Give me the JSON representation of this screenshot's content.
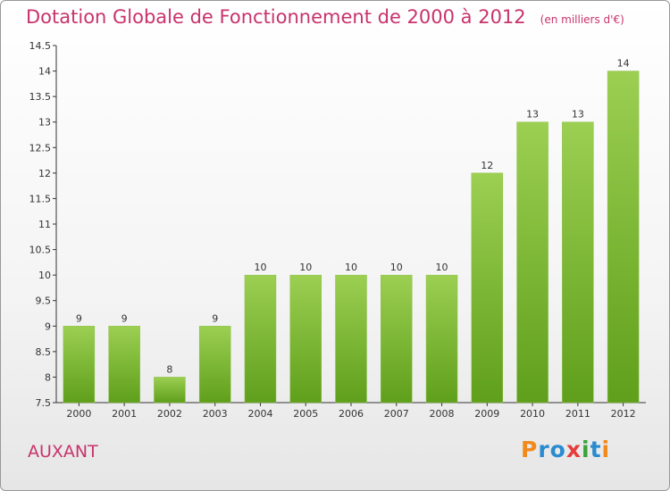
{
  "title": "Dotation Globale de Fonctionnement de 2000 à 2012",
  "unit": "(en milliers d'€)",
  "commune": "AUXANT",
  "logo": "Proxiti",
  "colors": {
    "title": "#c8336b",
    "bar_top": "#9ccf52",
    "bar_bottom": "#5f9f1b",
    "logo": [
      "#f08a1c",
      "#2a8bd0",
      "#2a8bd0",
      "#e63c3c",
      "#3aa33a",
      "#2a8bd0",
      "#f08a1c"
    ]
  },
  "chart_data": {
    "type": "bar",
    "title": "Dotation Globale de Fonctionnement de 2000 à 2012",
    "subtitle": "(en milliers d'€)",
    "categories": [
      "2000",
      "2001",
      "2002",
      "2003",
      "2004",
      "2005",
      "2006",
      "2007",
      "2008",
      "2009",
      "2010",
      "2011",
      "2012"
    ],
    "values": [
      9,
      9,
      8,
      9,
      10,
      10,
      10,
      10,
      10,
      12,
      13,
      13,
      14
    ],
    "ylim": [
      7.5,
      14.5
    ],
    "yticks": [
      "7.5",
      "8",
      "8.5",
      "9",
      "9.5",
      "10",
      "10.5",
      "11",
      "11.5",
      "12",
      "12.5",
      "13",
      "13.5",
      "14",
      "14.5"
    ],
    "grid": false,
    "legend": "none"
  }
}
